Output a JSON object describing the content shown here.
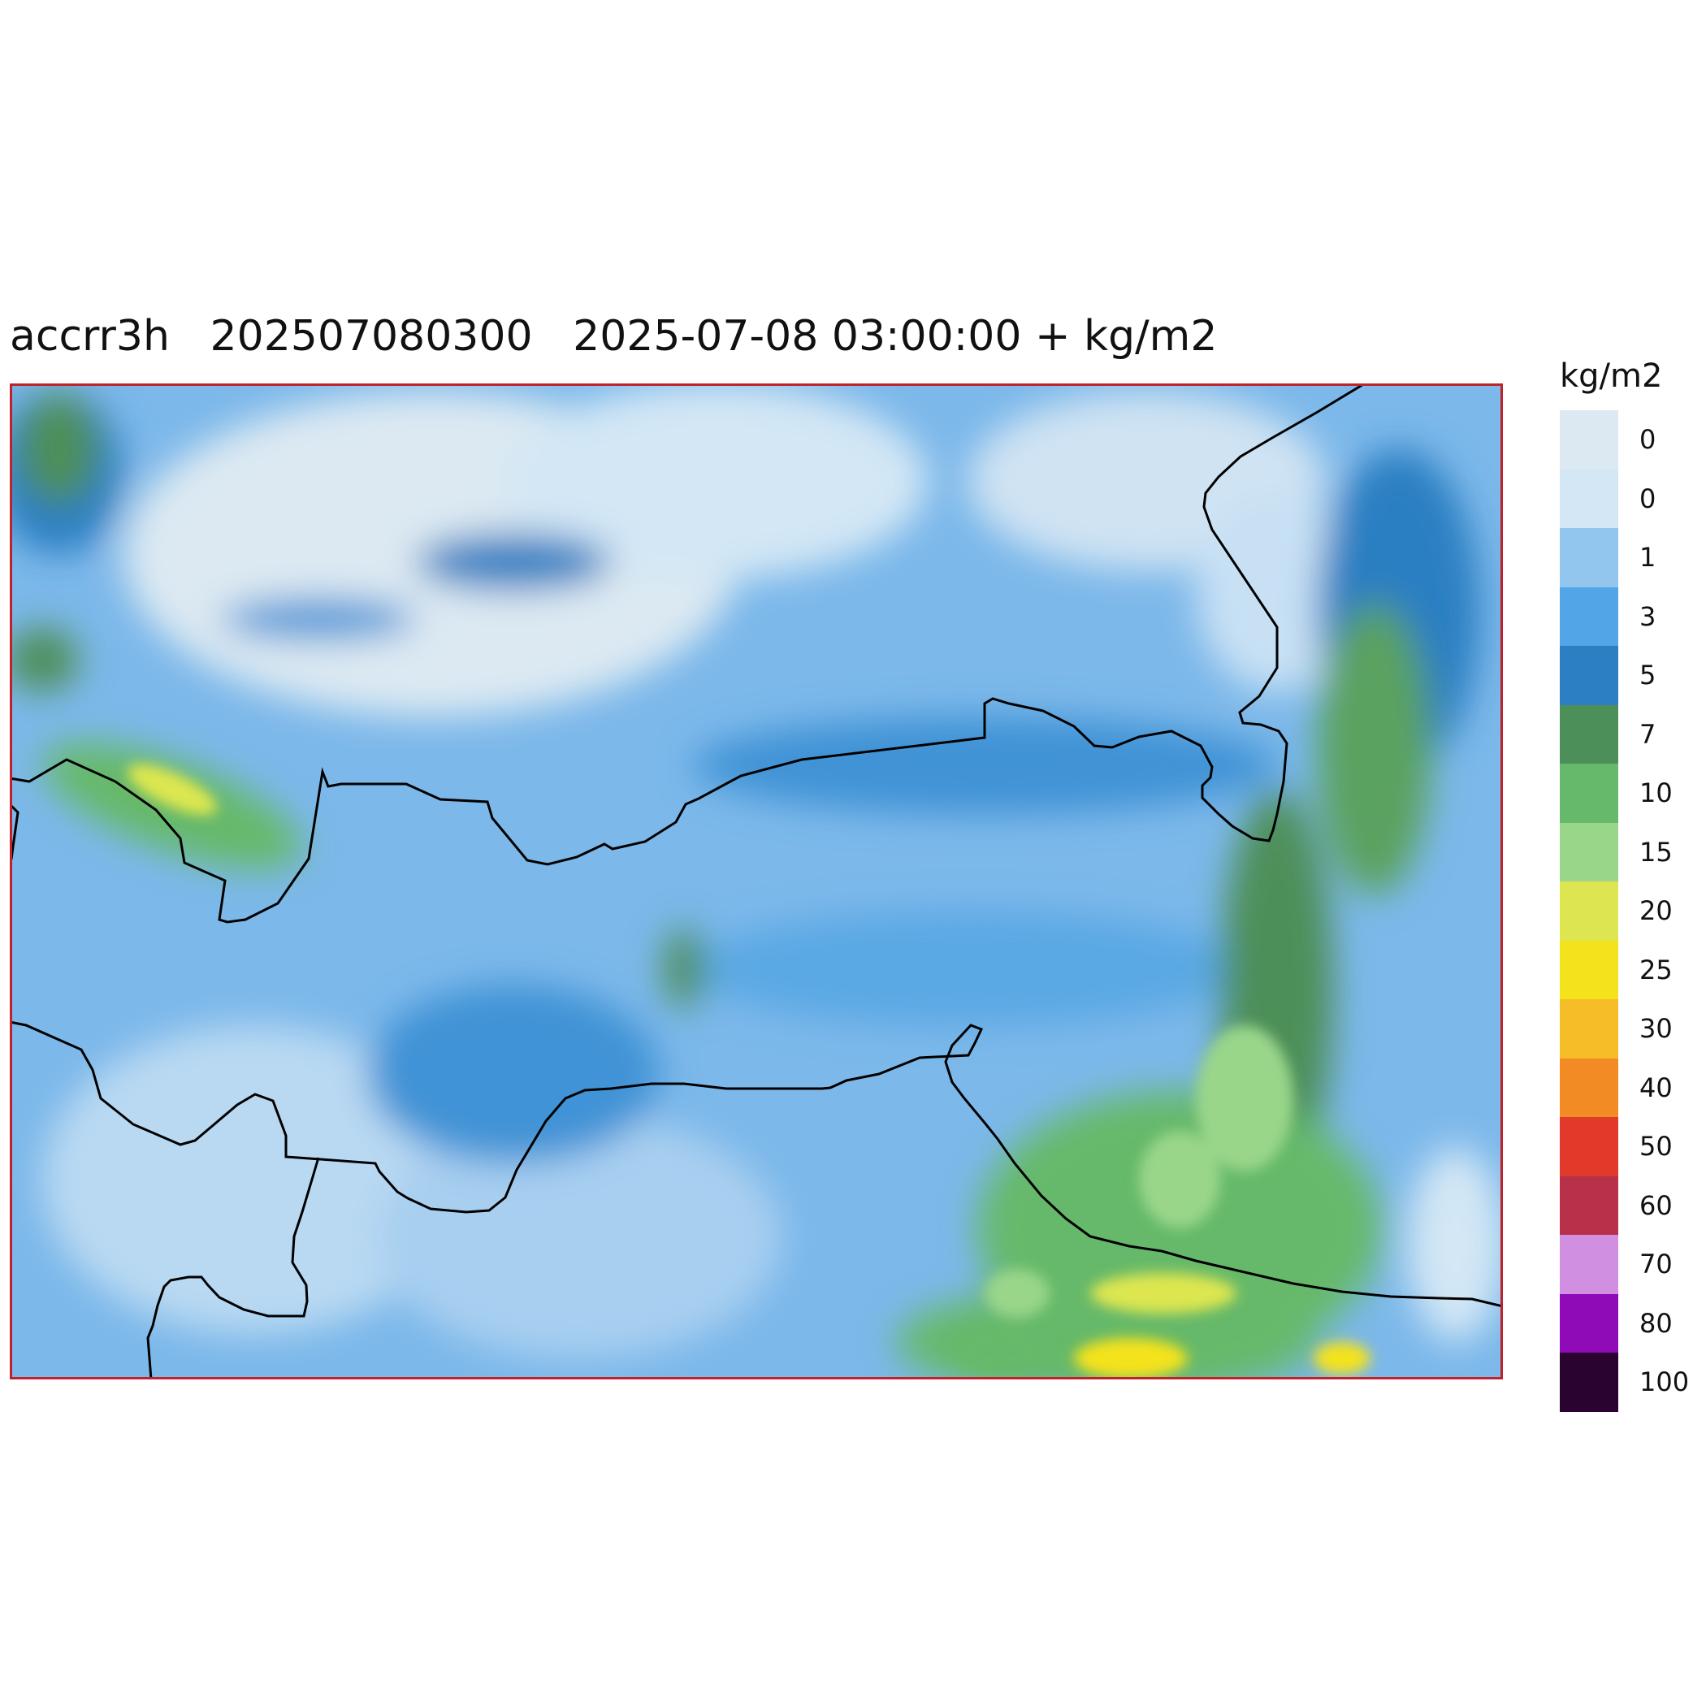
{
  "header": {
    "variable": "accrr3h",
    "run": "202507080300",
    "valid": "2025-07-08 03:00:00 + kg/m2"
  },
  "colorbar": {
    "unit": "kg/m2",
    "levels": [
      {
        "label": "0",
        "color": "#dce9f2"
      },
      {
        "label": "0",
        "color": "#d3e7f5"
      },
      {
        "label": "1",
        "color": "#93c6ee"
      },
      {
        "label": "3",
        "color": "#52a5e6"
      },
      {
        "label": "5",
        "color": "#2b7fc2"
      },
      {
        "label": "7",
        "color": "#4d8f59"
      },
      {
        "label": "10",
        "color": "#66b96a"
      },
      {
        "label": "15",
        "color": "#9ad68a"
      },
      {
        "label": "20",
        "color": "#dde650"
      },
      {
        "label": "25",
        "color": "#f4e21c"
      },
      {
        "label": "30",
        "color": "#f5bd27"
      },
      {
        "label": "40",
        "color": "#f38b25"
      },
      {
        "label": "50",
        "color": "#e23a2a"
      },
      {
        "label": "60",
        "color": "#b9304a"
      },
      {
        "label": "70",
        "color": "#d08fe0"
      },
      {
        "label": "80",
        "color": "#8e0bb7"
      },
      {
        "label": "100",
        "color": "#2a0330"
      }
    ]
  },
  "map": {
    "frame_color": "#c0222c",
    "border_color": "#000000"
  }
}
